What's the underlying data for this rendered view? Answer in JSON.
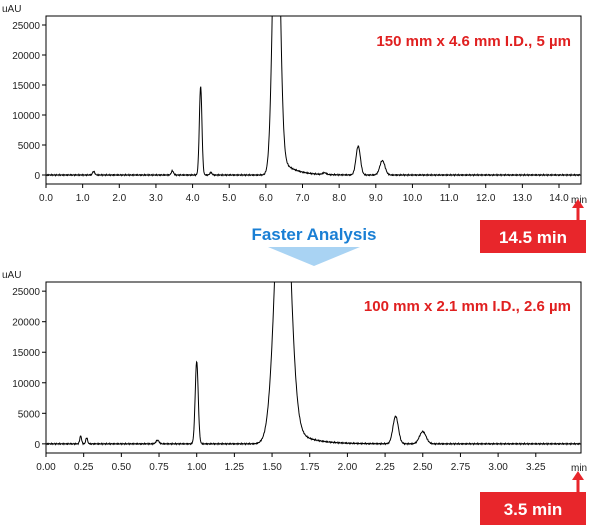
{
  "transition": {
    "label": "Faster Analysis"
  },
  "colors": {
    "accent_red": "#e8262b",
    "accent_blue": "#1a7fd4",
    "trace": "#000000"
  },
  "chart_data": [
    {
      "type": "line",
      "annotation": "150 mm x 4.6 mm I.D., 5 µm",
      "badge": "14.5 min",
      "y_unit": "uAU",
      "x_unit": "min",
      "xlim": [
        0,
        14.6
      ],
      "ylim": [
        -1500,
        26500
      ],
      "x_ticks": [
        0.0,
        1.0,
        2.0,
        3.0,
        4.0,
        5.0,
        6.0,
        7.0,
        8.0,
        9.0,
        10.0,
        11.0,
        12.0,
        13.0,
        14.0
      ],
      "x_tick_labels": [
        "0.0",
        "1.0",
        "2.0",
        "3.0",
        "4.0",
        "5.0",
        "6.0",
        "7.0",
        "8.0",
        "9.0",
        "10.0",
        "11.0",
        "12.0",
        "13.0",
        "14.0"
      ],
      "y_ticks": [
        0,
        5000,
        10000,
        15000,
        20000,
        25000
      ],
      "y_tick_labels": [
        "0",
        "5000",
        "10000",
        "15000",
        "20000",
        "25000"
      ],
      "baseline": 0,
      "peaks": [
        {
          "x": 1.3,
          "y": 600,
          "w": 0.03
        },
        {
          "x": 3.45,
          "y": 700,
          "w": 0.03
        },
        {
          "x": 4.22,
          "y": 14800,
          "w": 0.035
        },
        {
          "x": 4.5,
          "y": 400,
          "w": 0.03
        },
        {
          "x": 6.3,
          "y": 60000,
          "w": 0.1,
          "tail": 0.35
        },
        {
          "x": 7.6,
          "y": 300,
          "w": 0.05
        },
        {
          "x": 8.52,
          "y": 4800,
          "w": 0.06
        },
        {
          "x": 9.18,
          "y": 2400,
          "w": 0.07
        }
      ]
    },
    {
      "type": "line",
      "annotation": "100 mm x 2.1 mm I.D., 2.6 µm",
      "badge": "3.5 min",
      "y_unit": "uAU",
      "x_unit": "min",
      "xlim": [
        0,
        3.55
      ],
      "ylim": [
        -1500,
        26500
      ],
      "x_ticks": [
        0.0,
        0.25,
        0.5,
        0.75,
        1.0,
        1.25,
        1.5,
        1.75,
        2.0,
        2.25,
        2.5,
        2.75,
        3.0,
        3.25
      ],
      "x_tick_labels": [
        "0.00",
        "0.25",
        "0.50",
        "0.75",
        "1.00",
        "1.25",
        "1.50",
        "1.75",
        "2.00",
        "2.25",
        "2.50",
        "2.75",
        "3.00",
        "3.25"
      ],
      "y_ticks": [
        0,
        5000,
        10000,
        15000,
        20000,
        25000
      ],
      "y_tick_labels": [
        "0",
        "5000",
        "10000",
        "15000",
        "20000",
        "25000"
      ],
      "baseline": 0,
      "peaks": [
        {
          "x": 0.23,
          "y": 1300,
          "w": 0.006
        },
        {
          "x": 0.27,
          "y": 1000,
          "w": 0.006
        },
        {
          "x": 0.74,
          "y": 600,
          "w": 0.01
        },
        {
          "x": 1.0,
          "y": 13500,
          "w": 0.01
        },
        {
          "x": 1.58,
          "y": 60000,
          "w": 0.05,
          "tail": 0.12
        },
        {
          "x": 2.32,
          "y": 4500,
          "w": 0.018
        },
        {
          "x": 2.5,
          "y": 2000,
          "w": 0.022
        }
      ]
    }
  ]
}
